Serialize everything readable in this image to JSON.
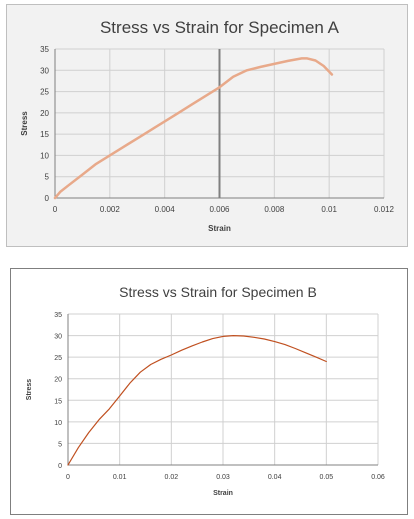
{
  "chart_data": [
    {
      "type": "line",
      "title": "Stress vs Strain for Specimen A",
      "xlabel": "Strain",
      "ylabel": "Stress",
      "xlim": [
        0,
        0.012
      ],
      "ylim": [
        0,
        35
      ],
      "x_ticks": [
        "0",
        "0.002",
        "0.004",
        "0.006",
        "0.008",
        "0.01",
        "0.012"
      ],
      "y_ticks": [
        "0",
        "5",
        "10",
        "15",
        "20",
        "25",
        "30",
        "35"
      ],
      "grid": true,
      "legend": "none",
      "line_color": "#e8a98a",
      "marker_color": "#808080",
      "marker_x": 0.006,
      "x": [
        0,
        0.0002,
        0.0005,
        0.001,
        0.0015,
        0.002,
        0.0025,
        0.003,
        0.0035,
        0.004,
        0.0045,
        0.005,
        0.0055,
        0.006,
        0.0065,
        0.007,
        0.0075,
        0.008,
        0.0085,
        0.009,
        0.0092,
        0.0095,
        0.0098,
        0.0101
      ],
      "y": [
        0,
        1.5,
        3,
        5.5,
        8,
        10,
        12,
        14,
        16,
        18,
        20,
        22,
        24,
        26,
        28.5,
        30,
        30.8,
        31.5,
        32.2,
        32.8,
        32.8,
        32.3,
        31,
        29
      ]
    },
    {
      "type": "line",
      "title": "Stress vs Strain for Specimen B",
      "xlabel": "Strain",
      "ylabel": "Stress",
      "xlim": [
        0,
        0.06
      ],
      "ylim": [
        0,
        35
      ],
      "x_ticks": [
        "0",
        "0.01",
        "0.02",
        "0.03",
        "0.04",
        "0.05",
        "0.06"
      ],
      "y_ticks": [
        "0",
        "5",
        "10",
        "15",
        "20",
        "25",
        "30",
        "35"
      ],
      "grid": true,
      "legend": "none",
      "line_color": "#c05020",
      "x": [
        0,
        0.002,
        0.004,
        0.006,
        0.008,
        0.01,
        0.012,
        0.014,
        0.016,
        0.018,
        0.02,
        0.022,
        0.024,
        0.026,
        0.028,
        0.03,
        0.032,
        0.034,
        0.036,
        0.038,
        0.04,
        0.042,
        0.044,
        0.046,
        0.048,
        0.05
      ],
      "y": [
        0,
        4,
        7.5,
        10.5,
        13,
        16,
        19,
        21.5,
        23.3,
        24.5,
        25.5,
        26.6,
        27.6,
        28.5,
        29.3,
        29.8,
        30,
        29.9,
        29.6,
        29.2,
        28.6,
        27.9,
        27,
        26,
        25,
        24
      ]
    }
  ]
}
